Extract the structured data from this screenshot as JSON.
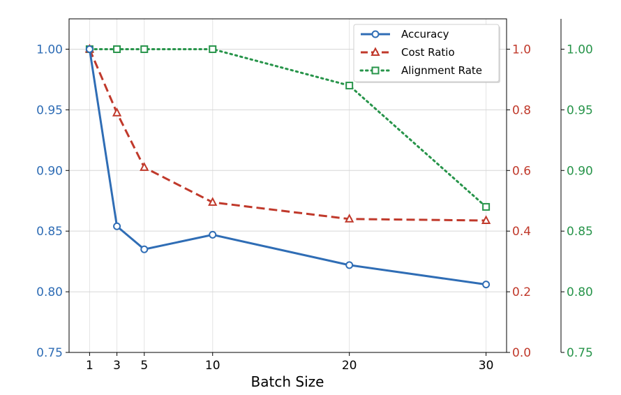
{
  "chart_data": {
    "type": "line",
    "xlabel": "Batch Size",
    "x": [
      1,
      3,
      5,
      10,
      20,
      30
    ],
    "xticks": [
      "1",
      "3",
      "5",
      "10",
      "20",
      "30"
    ],
    "xlim": [
      -0.5,
      31.5
    ],
    "grid": true,
    "legend": "top-right",
    "series": [
      {
        "name": "Accuracy",
        "axis": "left",
        "values": [
          1.0,
          0.854,
          0.835,
          0.847,
          0.822,
          0.806
        ],
        "color": "#2f6db5",
        "marker": "circle",
        "linestyle": "solid"
      },
      {
        "name": "Cost Ratio",
        "axis": "right",
        "values": [
          1.0,
          0.79,
          0.61,
          0.495,
          0.44,
          0.435
        ],
        "color": "#c0392b",
        "marker": "triangle",
        "linestyle": "dashed"
      },
      {
        "name": "Alignment Rate",
        "axis": "far-right",
        "values": [
          1.0,
          1.0,
          1.0,
          1.0,
          0.97,
          0.87
        ],
        "color": "#27944a",
        "marker": "square",
        "linestyle": "dotted"
      }
    ],
    "axes": {
      "left": {
        "ylim": [
          0.75,
          1.025
        ],
        "ticks": [
          "0.75",
          "0.80",
          "0.85",
          "0.90",
          "0.95",
          "1.00"
        ],
        "color": "#2f6db5"
      },
      "right": {
        "ylim": [
          0.0,
          1.1
        ],
        "ticks": [
          "0.0",
          "0.2",
          "0.4",
          "0.6",
          "0.8",
          "1.0"
        ],
        "color": "#c0392b"
      },
      "far_right": {
        "ylim": [
          0.75,
          1.025
        ],
        "ticks": [
          "0.75",
          "0.80",
          "0.85",
          "0.90",
          "0.95",
          "1.00"
        ],
        "color": "#27944a"
      }
    }
  }
}
